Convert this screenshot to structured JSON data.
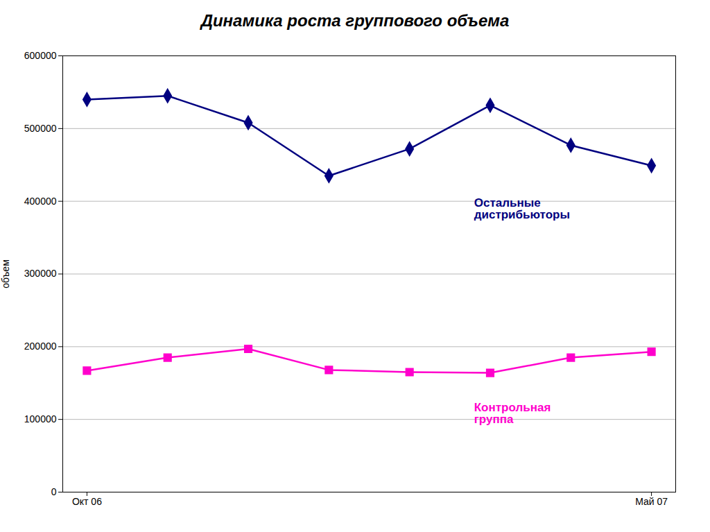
{
  "chart_data": {
    "type": "line",
    "title": "Динамика роста группового объема",
    "ylabel": "объем",
    "x": [
      0,
      1,
      2,
      3,
      4,
      5,
      6,
      7
    ],
    "xlim": [
      -0.3,
      7.3
    ],
    "xticks": [
      {
        "value": 0,
        "label": "Окт 06"
      },
      {
        "value": 7,
        "label": "Май 07"
      }
    ],
    "ylim": [
      0,
      600000
    ],
    "yticks": [
      0,
      100000,
      200000,
      300000,
      400000,
      500000,
      600000
    ],
    "grid": true,
    "series": [
      {
        "color": "#000080",
        "marker": "diamond",
        "values": [
          540000,
          545000,
          508000,
          435000,
          472000,
          532000,
          477000,
          449000
        ]
      },
      {
        "color": "#FF00CC",
        "marker": "square",
        "values": [
          167000,
          185000,
          197000,
          168000,
          165000,
          164000,
          185000,
          193000
        ]
      }
    ],
    "annotations": [
      {
        "text": "Остальные\nдистрибьюторы",
        "x": 4.8,
        "y": 390000,
        "color": "#000080"
      },
      {
        "text": "Контрольная\nгруппа",
        "x": 4.8,
        "y": 108000,
        "color": "#FF00CC"
      }
    ]
  }
}
